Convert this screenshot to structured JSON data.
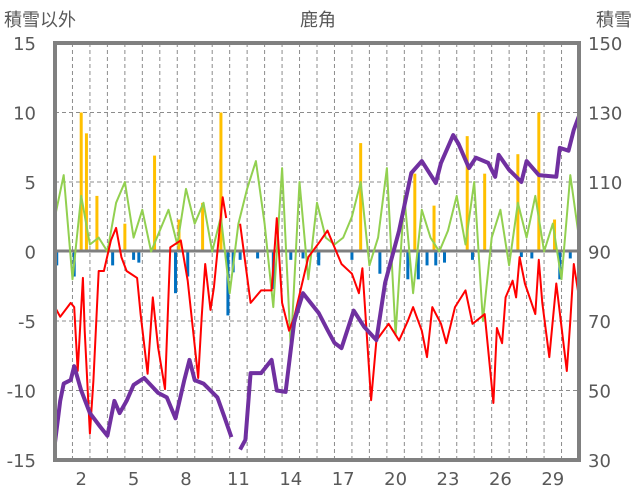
{
  "chart_data": {
    "type": "line",
    "title": "鹿角",
    "ylabel_left": "積雪以外",
    "ylabel_right": "積雪",
    "ylim_left": [
      -15,
      15
    ],
    "ylim_right": [
      30,
      150
    ],
    "yticks_left": [
      "15",
      "10",
      "5",
      "0",
      "-5",
      "-10",
      "-15"
    ],
    "yticks_right": [
      "150",
      "130",
      "110",
      "90",
      "70",
      "50",
      "30"
    ],
    "xlim": [
      1,
      31
    ],
    "xticks": [
      "2",
      "5",
      "8",
      "11",
      "14",
      "17",
      "20",
      "23",
      "26",
      "29"
    ],
    "grid": true,
    "colors": {
      "snow": "#7030A0",
      "temp": "#FF0000",
      "wind": "#92D050",
      "precip": "#FFC000",
      "sun": "#0070C0",
      "frame": "#808080"
    },
    "series": [
      {
        "name": "snow_depth",
        "axis": "right",
        "x": [
          1.0,
          1.3,
          1.5,
          1.9,
          2.1,
          2.5,
          3.0,
          3.6,
          4.0,
          4.4,
          4.7,
          5.1,
          5.5,
          6.1,
          6.9,
          7.4,
          7.9,
          8.4,
          8.7,
          9.0,
          9.5,
          10.3,
          10.7,
          11.1,
          null,
          11.6,
          11.9,
          12.2,
          12.8,
          13.4,
          13.7,
          14.2,
          14.7,
          15.2,
          16.1,
          16.6,
          17.0,
          17.4,
          18.1,
          18.7,
          19.4,
          19.9,
          20.7,
          21.4,
          22.0,
          22.8,
          23.1,
          23.8,
          24.1,
          24.7,
          25.1,
          25.8,
          26.2,
          26.4,
          27.0,
          27.7,
          28.0,
          28.7,
          29.7,
          29.9,
          30.4,
          30.7,
          31.0
        ],
        "y": [
          35,
          47,
          52,
          53,
          57,
          50,
          43.5,
          39.5,
          37,
          47,
          43.5,
          47,
          51.6,
          53.6,
          49.3,
          48,
          42,
          53,
          58.8,
          53,
          52,
          48,
          42.4,
          36.6,
          null,
          33,
          35.8,
          55,
          55,
          58.8,
          50,
          49.6,
          70,
          78,
          72.3,
          67.4,
          63.7,
          62.2,
          73,
          68.3,
          64.5,
          81,
          96,
          112.6,
          116,
          109.7,
          115.5,
          123.5,
          121,
          114,
          117,
          115.5,
          111.5,
          117.8,
          113.5,
          110,
          116,
          112,
          111.5,
          119.8,
          119,
          125,
          129
        ]
      },
      {
        "name": "temperature",
        "axis": "left",
        "x": [
          1.0,
          1.3,
          1.9,
          2.1,
          2.3,
          2.6,
          2.7,
          3.0,
          3.2,
          3.5,
          3.8,
          4.2,
          4.5,
          4.8,
          5.1,
          5.7,
          5.9,
          6.3,
          6.6,
          6.9,
          7.3,
          7.6,
          8.2,
          8.6,
          9.2,
          9.4,
          9.6,
          9.9,
          10.1,
          10.6,
          10.8,
          null,
          11.6,
          12.2,
          12.8,
          13.4,
          13.7,
          14.0,
          14.4,
          14.7,
          15.5,
          16.1,
          16.6,
          17.4,
          18.0,
          18.4,
          18.6,
          19.1,
          19.4,
          20.1,
          20.7,
          21.2,
          21.5,
          22.0,
          22.3,
          22.6,
          23.1,
          23.4,
          23.9,
          24.5,
          24.9,
          25.6,
          26.1,
          26.3,
          26.6,
          26.8,
          27.2,
          27.4,
          27.6,
          27.9,
          28.5,
          28.7,
          28.9,
          29.3,
          29.7,
          30.3,
          30.5,
          30.7,
          31.0
        ],
        "y": [
          -4,
          -4.7,
          -3.7,
          -4,
          -8.6,
          -1.9,
          -5.7,
          -13.1,
          -9.3,
          -1.4,
          -1.4,
          0.8,
          1.7,
          -0.4,
          -1.4,
          -1.9,
          -4.5,
          -8.8,
          -3.3,
          -6.9,
          -9.9,
          0.3,
          0.8,
          -2.1,
          -9.1,
          -4.7,
          -0.9,
          -4.2,
          -2.6,
          3.9,
          2.4,
          null,
          2,
          -3.7,
          -2.8,
          -2.8,
          2.4,
          -3.7,
          -5.7,
          -4.7,
          -0.4,
          0.6,
          1.5,
          -0.9,
          -1.6,
          -3,
          -1.2,
          -10.7,
          -6.4,
          -5.2,
          -6.4,
          -5,
          -4,
          -5.7,
          -7.6,
          -4,
          -5.2,
          -6.6,
          -4,
          -2.8,
          -5.2,
          -4.5,
          -10.9,
          -5.5,
          -6.6,
          -3.3,
          -2.1,
          -3.3,
          -0.4,
          -2.3,
          -4.5,
          -0.6,
          -3.7,
          -7.6,
          -2.3,
          -8.6,
          -5,
          -0.9,
          -3.3
        ]
      },
      {
        "name": "wind",
        "axis": "left",
        "x_start": 1,
        "x_step": 0.5,
        "y": [
          2.5,
          5.5,
          -2,
          4,
          0.5,
          1,
          0,
          3.5,
          5,
          1,
          3,
          0,
          1.5,
          3,
          0.5,
          4.5,
          2,
          3.5,
          0,
          2.5,
          -3,
          2,
          4.5,
          6.5,
          2,
          -4,
          6,
          -7,
          5,
          -2,
          3.5,
          1,
          0.5,
          1,
          2.5,
          5,
          -1,
          1,
          6,
          -6,
          4,
          -3,
          3,
          1,
          0,
          1.5,
          4,
          0.5,
          5,
          -5,
          1,
          3,
          -1,
          3.5,
          1,
          4,
          0,
          2,
          -2,
          5.5,
          1
        ]
      },
      {
        "name": "precipitation",
        "axis": "left",
        "type": "bar",
        "x": [
          2.5,
          2.8,
          3.4,
          5.0,
          6.7,
          8.1,
          9.45,
          10.5,
          18.5,
          21.6,
          22.7,
          24.6,
          25.6,
          27.5,
          28.7,
          29.6
        ],
        "y": [
          10,
          8.5,
          4,
          2,
          6.9,
          2.3,
          3.5,
          10,
          7.8,
          5.6,
          3.3,
          8.3,
          5.6,
          7,
          10,
          2.3
        ]
      },
      {
        "name": "sunshine",
        "axis": "left",
        "type": "bar",
        "x": [
          1.1,
          2.1,
          4.3,
          5.5,
          5.8,
          7.9,
          8.6,
          10.9,
          11.2,
          11.6,
          12.6,
          13.5,
          14.5,
          15.2,
          16.1,
          16.1,
          18.0,
          19.6,
          21.2,
          21.8,
          22.3,
          22.8,
          23.3,
          24.9,
          27.7,
          28.3,
          29.9,
          30.5
        ],
        "y": [
          -1,
          -1.8,
          -1,
          -0.6,
          -0.8,
          -3,
          -1.8,
          -4.6,
          -1.5,
          -0.6,
          -0.5,
          -2.7,
          -0.6,
          -0.5,
          -0.6,
          -1,
          -0.6,
          -1.6,
          -2,
          -2,
          -1,
          -1,
          -0.8,
          -0.6,
          -0.4,
          -0.5,
          -2,
          -0.5
        ]
      }
    ]
  }
}
